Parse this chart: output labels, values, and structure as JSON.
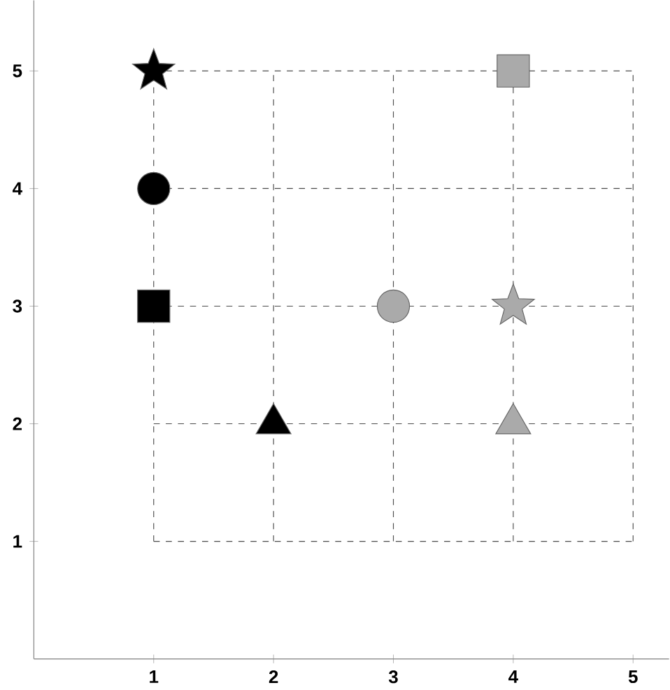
{
  "chart_data": {
    "type": "scatter",
    "xlim": [
      0,
      5.3
    ],
    "ylim": [
      0,
      5.6
    ],
    "xticks": [
      1,
      2,
      3,
      4,
      5
    ],
    "yticks": [
      1,
      2,
      3,
      4,
      5
    ],
    "grid": true,
    "line_style": "dashed",
    "series": [
      {
        "color": "#000000",
        "marker": "star",
        "x": [
          1
        ],
        "values": [
          5
        ]
      },
      {
        "color": "#000000",
        "marker": "circle",
        "x": [
          1
        ],
        "values": [
          4
        ]
      },
      {
        "color": "#000000",
        "marker": "square",
        "x": [
          1
        ],
        "values": [
          3
        ]
      },
      {
        "color": "#000000",
        "marker": "triangle",
        "x": [
          2
        ],
        "values": [
          2
        ]
      },
      {
        "color": "#aaaaaa",
        "marker": "square",
        "x": [
          4
        ],
        "values": [
          5
        ]
      },
      {
        "color": "#aaaaaa",
        "marker": "circle",
        "x": [
          3
        ],
        "values": [
          3
        ]
      },
      {
        "color": "#aaaaaa",
        "marker": "star",
        "x": [
          4
        ],
        "values": [
          3
        ]
      },
      {
        "color": "#aaaaaa",
        "marker": "triangle",
        "x": [
          4
        ],
        "values": [
          2
        ]
      }
    ]
  }
}
